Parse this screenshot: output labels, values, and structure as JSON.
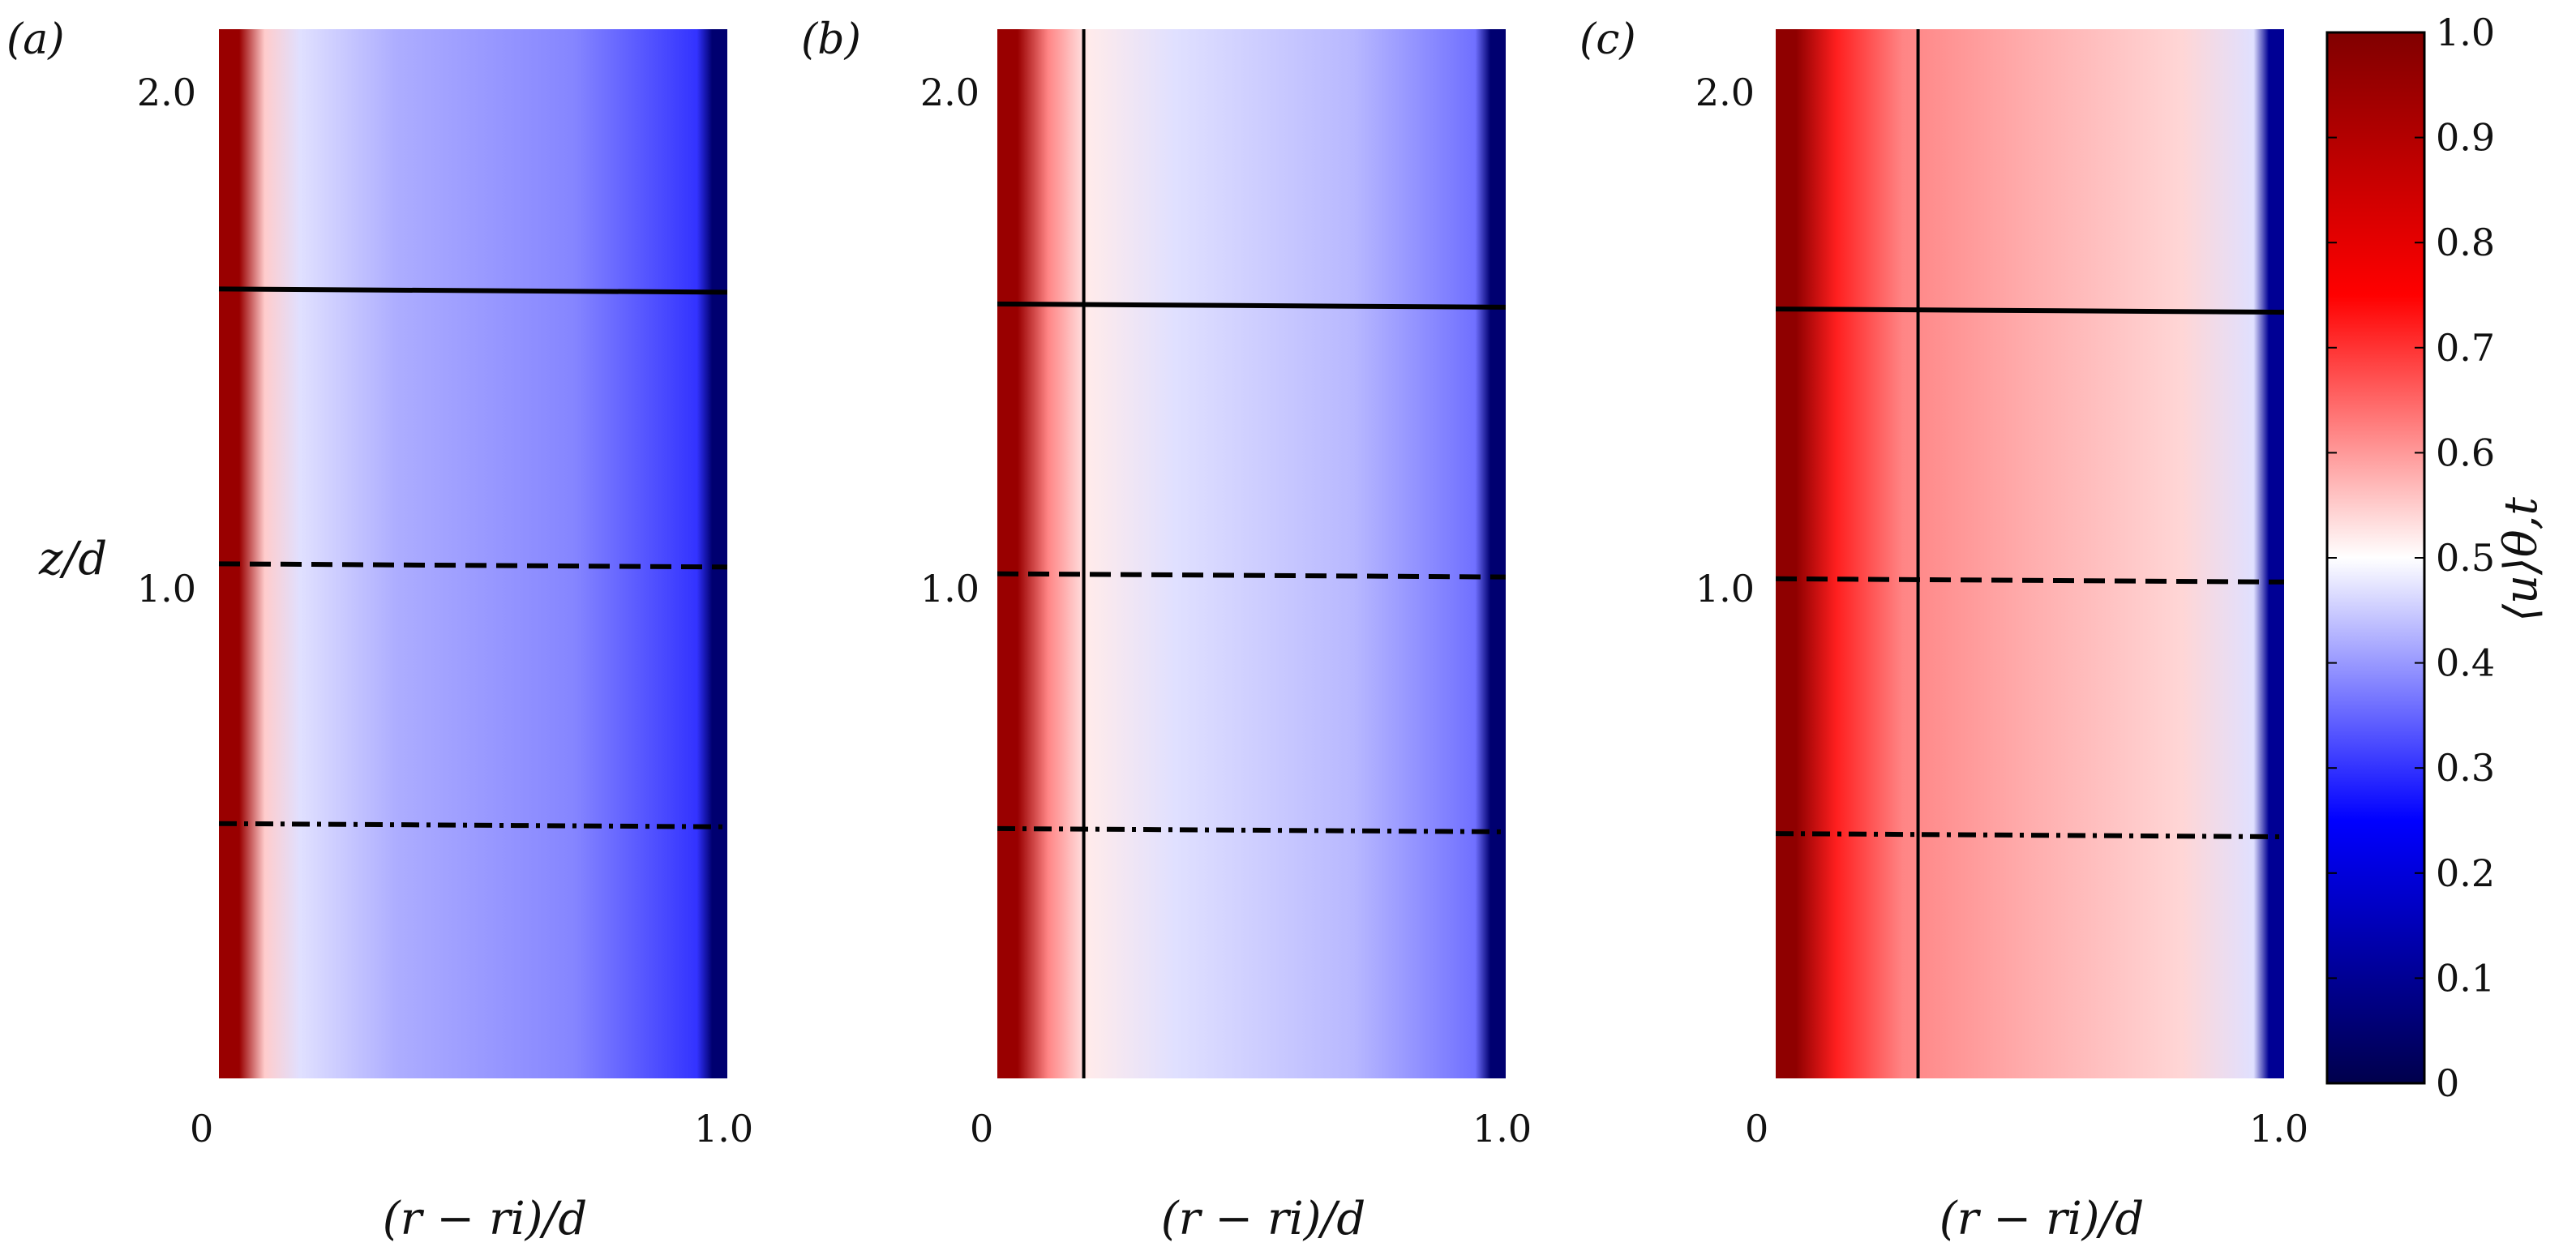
{
  "chart_data": {
    "type": "heatmap",
    "colorbar": {
      "label": "⟨u⟩θ,t",
      "range": [
        0,
        1
      ],
      "ticks": [
        "0",
        "0.1",
        "0.2",
        "0.3",
        "0.4",
        "0.5",
        "0.6",
        "0.7",
        "0.8",
        "0.9",
        "1.0"
      ],
      "colormap": "seismic",
      "colors": [
        "#00004c",
        "#0000ff",
        "#ffffff",
        "#ff0000",
        "#800000"
      ]
    },
    "shared_axes": {
      "xlabel": "(r − ri)/d",
      "ylabel": "z/d",
      "xlim": [
        0,
        1.0
      ],
      "ylim": [
        0,
        2.1
      ],
      "xticks": [
        "0",
        "1.0"
      ],
      "yticks": [
        "1.0",
        "2.0"
      ]
    },
    "panels": [
      {
        "label": "(a)",
        "vertical_line_x": null,
        "profile": [
          [
            0.04,
            0.95
          ],
          [
            0.09,
            0.55
          ],
          [
            0.16,
            0.47
          ],
          [
            0.35,
            0.42
          ],
          [
            0.7,
            0.38
          ],
          [
            0.94,
            0.3
          ],
          [
            0.97,
            0.05
          ]
        ],
        "horizontal_lines": [
          {
            "style": "solid",
            "z": 1.58
          },
          {
            "style": "dashed",
            "z": 1.03
          },
          {
            "style": "dashdot",
            "z": 0.51
          }
        ]
      },
      {
        "label": "(b)",
        "vertical_line_x": 0.17,
        "profile": [
          [
            0.04,
            0.95
          ],
          [
            0.1,
            0.62
          ],
          [
            0.18,
            0.52
          ],
          [
            0.35,
            0.47
          ],
          [
            0.7,
            0.43
          ],
          [
            0.94,
            0.36
          ],
          [
            0.97,
            0.05
          ]
        ],
        "horizontal_lines": [
          {
            "style": "solid",
            "z": 1.55
          },
          {
            "style": "dashed",
            "z": 1.01
          },
          {
            "style": "dashdot",
            "z": 0.5
          }
        ]
      },
      {
        "label": "(c)",
        "vertical_line_x": 0.28,
        "profile": [
          [
            0.04,
            0.97
          ],
          [
            0.12,
            0.72
          ],
          [
            0.25,
            0.62
          ],
          [
            0.5,
            0.58
          ],
          [
            0.8,
            0.54
          ],
          [
            0.94,
            0.47
          ],
          [
            0.97,
            0.1
          ]
        ],
        "horizontal_lines": [
          {
            "style": "solid",
            "z": 1.54
          },
          {
            "style": "dashed",
            "z": 1.0
          },
          {
            "style": "dashdot",
            "z": 0.49
          }
        ]
      }
    ]
  }
}
